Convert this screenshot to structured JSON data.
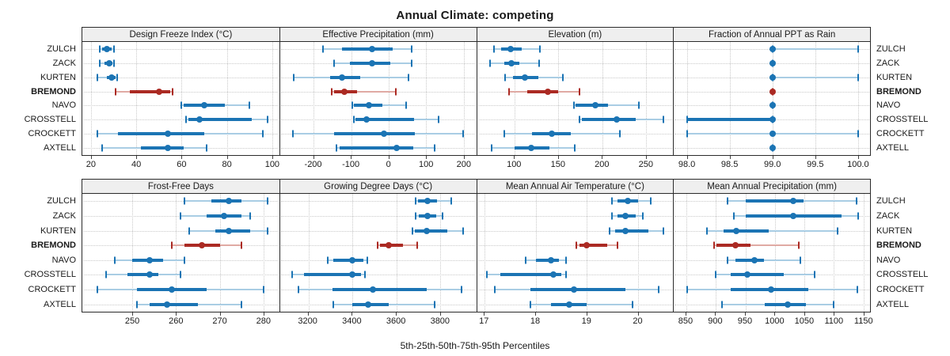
{
  "title": "Annual Climate: competing",
  "caption": "5th-25th-50th-75th-95th Percentiles",
  "colors": {
    "blue": "#1b74b4",
    "blue_light": "#a9cde4",
    "red": "#ab2a23",
    "red_light": "#e0aaa4",
    "grid": "#c9c9c9",
    "header_bg": "#efefef",
    "border": "#2b2b2b"
  },
  "chart_data": {
    "type": "scatter",
    "subtype": "percentile-interval-dotplot-lattice",
    "percentiles": [
      5,
      25,
      50,
      75,
      95
    ],
    "grid": "dotted",
    "legend": "none",
    "categories": [
      "ZULCH",
      "ZACK",
      "KURTEN",
      "BREMOND",
      "NAVO",
      "CROSSTELL",
      "CROCKETT",
      "AXTELL"
    ],
    "highlight_category": "BREMOND",
    "panels": [
      {
        "key": "design_freeze_index",
        "title": "Design Freeze Index (°C)",
        "row": 0,
        "xlim": [
          16.2,
          103.1
        ],
        "tick_labels": [
          "20",
          "40",
          "60",
          "80",
          "100"
        ],
        "tick_values": [
          20,
          40,
          60,
          80,
          100
        ],
        "series": [
          {
            "site": "ZULCH",
            "values": [
              24,
              25,
              27,
              29,
              30
            ]
          },
          {
            "site": "ZACK",
            "values": [
              24,
              26,
              28,
              29.5,
              30
            ]
          },
          {
            "site": "KURTEN",
            "values": [
              23,
              27,
              29,
              31,
              31.5
            ]
          },
          {
            "site": "BREMOND",
            "values": [
              31,
              37,
              50,
              55,
              56
            ]
          },
          {
            "site": "NAVO",
            "values": [
              60,
              61,
              70,
              79,
              90
            ]
          },
          {
            "site": "CROSSTELL",
            "values": [
              62,
              63,
              68,
              91,
              98
            ]
          },
          {
            "site": "CROCKETT",
            "values": [
              23,
              32,
              54,
              70,
              96
            ]
          },
          {
            "site": "AXTELL",
            "values": [
              25,
              42,
              54,
              61,
              71
            ]
          }
        ]
      },
      {
        "key": "effective_precipitation",
        "title": "Effective Precipitation (mm)",
        "row": 0,
        "xlim": [
          -290,
          233
        ],
        "tick_labels": [
          "-200",
          "-100",
          "0",
          "100",
          "200"
        ],
        "tick_values": [
          -200,
          -100,
          0,
          100,
          200
        ],
        "series": [
          {
            "site": "ZULCH",
            "values": [
              -175,
              -125,
              -44,
              10,
              62
            ]
          },
          {
            "site": "ZACK",
            "values": [
              -145,
              -104,
              -44,
              5,
              62
            ]
          },
          {
            "site": "KURTEN",
            "values": [
              -254,
              -156,
              -125,
              -77,
              52
            ]
          },
          {
            "site": "BREMOND",
            "values": [
              -152,
              -146,
              -119,
              -85,
              19
            ]
          },
          {
            "site": "NAVO",
            "values": [
              -98,
              -94,
              -54,
              -17,
              46
            ]
          },
          {
            "site": "CROSSTELL",
            "values": [
              -94,
              -89,
              -60,
              67,
              133
            ]
          },
          {
            "site": "CROCKETT",
            "values": [
              -256,
              -146,
              -12,
              69,
              198
            ]
          },
          {
            "site": "AXTELL",
            "values": [
              -139,
              -131,
              21,
              65,
              123
            ]
          }
        ]
      },
      {
        "key": "elevation",
        "title": "Elevation (m)",
        "row": 0,
        "xlim": [
          57,
          281
        ],
        "tick_labels": [
          "100",
          "150",
          "200",
          "250"
        ],
        "tick_values": [
          100,
          150,
          200,
          250
        ],
        "series": [
          {
            "site": "ZULCH",
            "values": [
              76,
              85,
              95,
              108,
              129
            ]
          },
          {
            "site": "ZACK",
            "values": [
              72,
              88,
              96,
              105,
              128
            ]
          },
          {
            "site": "KURTEN",
            "values": [
              89,
              98,
              112,
              127,
              155
            ]
          },
          {
            "site": "BREMOND",
            "values": [
              94,
              114,
              138,
              150,
              174
            ]
          },
          {
            "site": "NAVO",
            "values": [
              168,
              170,
              192,
              207,
              242
            ]
          },
          {
            "site": "CROSSTELL",
            "values": [
              174,
              177,
              217,
              238,
              270
            ]
          },
          {
            "site": "CROCKETT",
            "values": [
              88,
              120,
              142,
              164,
              220
            ]
          },
          {
            "site": "AXTELL",
            "values": [
              74,
              100,
              119,
              140,
              169
            ]
          }
        ]
      },
      {
        "key": "fraction_ppt_rain",
        "title": "Fraction of Annual PPT as Rain",
        "row": 0,
        "xlim": [
          97.84,
          100.14
        ],
        "tick_labels": [
          "98.0",
          "98.5",
          "99.0",
          "99.5",
          "100.0"
        ],
        "tick_values": [
          98,
          98.5,
          99,
          99.5,
          100
        ],
        "series": [
          {
            "site": "ZULCH",
            "values": [
              99,
              99,
              99,
              99,
              100
            ]
          },
          {
            "site": "ZACK",
            "values": [
              99,
              99,
              99,
              99,
              99
            ]
          },
          {
            "site": "KURTEN",
            "values": [
              99,
              99,
              99,
              99,
              100
            ]
          },
          {
            "site": "BREMOND",
            "values": [
              99,
              99,
              99,
              99,
              99
            ]
          },
          {
            "site": "NAVO",
            "values": [
              99,
              99,
              99,
              99,
              99
            ]
          },
          {
            "site": "CROSSTELL",
            "values": [
              98,
              98,
              99,
              99,
              99
            ]
          },
          {
            "site": "CROCKETT",
            "values": [
              98,
              99,
              99,
              99,
              100
            ]
          },
          {
            "site": "AXTELL",
            "values": [
              99,
              99,
              99,
              99,
              99
            ]
          }
        ]
      },
      {
        "key": "frost_free_days",
        "title": "Frost-Free Days",
        "row": 1,
        "xlim": [
          238.6,
          283.6
        ],
        "tick_labels": [
          "250",
          "260",
          "270",
          "280"
        ],
        "tick_values": [
          250,
          260,
          270,
          280
        ],
        "series": [
          {
            "site": "ZULCH",
            "values": [
              262,
              268,
              272,
              275,
              281
            ]
          },
          {
            "site": "ZACK",
            "values": [
              261,
              267,
              271,
              275,
              277
            ]
          },
          {
            "site": "KURTEN",
            "values": [
              263,
              269,
              272,
              277,
              281
            ]
          },
          {
            "site": "BREMOND",
            "values": [
              259,
              262,
              266,
              270,
              275
            ]
          },
          {
            "site": "NAVO",
            "values": [
              246,
              250,
              254,
              257,
              262
            ]
          },
          {
            "site": "CROSSTELL",
            "values": [
              244,
              249,
              254,
              256,
              261
            ]
          },
          {
            "site": "CROCKETT",
            "values": [
              242,
              251,
              259,
              267,
              280
            ]
          },
          {
            "site": "AXTELL",
            "values": [
              251,
              254,
              258,
              265,
              275
            ]
          }
        ]
      },
      {
        "key": "growing_degree_days",
        "title": "Growing Degree Days (°C)",
        "row": 1,
        "xlim": [
          3071,
          3964
        ],
        "tick_labels": [
          "3200",
          "3400",
          "3600",
          "3800"
        ],
        "tick_values": [
          3200,
          3400,
          3600,
          3800
        ],
        "series": [
          {
            "site": "ZULCH",
            "values": [
              3690,
              3700,
              3743,
              3786,
              3850
            ]
          },
          {
            "site": "ZACK",
            "values": [
              3690,
              3703,
              3743,
              3782,
              3810
            ]
          },
          {
            "site": "KURTEN",
            "values": [
              3675,
              3686,
              3739,
              3832,
              3903
            ]
          },
          {
            "site": "BREMOND",
            "values": [
              3514,
              3525,
              3564,
              3632,
              3696
            ]
          },
          {
            "site": "NAVO",
            "values": [
              3289,
              3314,
              3400,
              3450,
              3468
            ]
          },
          {
            "site": "CROSSTELL",
            "values": [
              3125,
              3180,
              3400,
              3439,
              3457
            ]
          },
          {
            "site": "CROCKETT",
            "values": [
              3154,
              3311,
              3493,
              3739,
              3896
            ]
          },
          {
            "site": "AXTELL",
            "values": [
              3314,
              3400,
              3471,
              3564,
              3775
            ]
          }
        ]
      },
      {
        "key": "mean_annual_air_temperature",
        "title": "Mean Annual Air Temperature (°C)",
        "row": 1,
        "xlim": [
          16.85,
          20.69
        ],
        "tick_labels": [
          "17",
          "18",
          "19",
          "20"
        ],
        "tick_values": [
          17,
          18,
          19,
          20
        ],
        "series": [
          {
            "site": "ZULCH",
            "values": [
              19.5,
              19.6,
              19.8,
              20.0,
              20.25
            ]
          },
          {
            "site": "ZACK",
            "values": [
              19.5,
              19.6,
              19.75,
              19.95,
              20.1
            ]
          },
          {
            "site": "KURTEN",
            "values": [
              19.45,
              19.55,
              19.75,
              20.2,
              20.5
            ]
          },
          {
            "site": "BREMOND",
            "values": [
              18.8,
              18.85,
              19.0,
              19.4,
              19.6
            ]
          },
          {
            "site": "NAVO",
            "values": [
              17.8,
              18.0,
              18.3,
              18.45,
              18.6
            ]
          },
          {
            "site": "CROSSTELL",
            "values": [
              17.05,
              17.3,
              18.35,
              18.5,
              18.6
            ]
          },
          {
            "site": "CROCKETT",
            "values": [
              17.2,
              17.9,
              18.75,
              19.75,
              20.4
            ]
          },
          {
            "site": "AXTELL",
            "values": [
              17.9,
              18.3,
              18.65,
              19.0,
              19.9
            ]
          }
        ]
      },
      {
        "key": "mean_annual_precipitation",
        "title": "Mean Annual Precipitation (mm)",
        "row": 1,
        "xlim": [
          829,
          1161
        ],
        "tick_labels": [
          "850",
          "900",
          "950",
          "1000",
          "1050",
          "1100",
          "1150"
        ],
        "tick_values": [
          850,
          900,
          950,
          1000,
          1050,
          1100,
          1150
        ],
        "series": [
          {
            "site": "ZULCH",
            "values": [
              920,
              950,
              1031,
              1049,
              1138
            ]
          },
          {
            "site": "ZACK",
            "values": [
              930,
              950,
              1031,
              1113,
              1141
            ]
          },
          {
            "site": "KURTEN",
            "values": [
              885,
              913,
              935,
              989,
              1106
            ]
          },
          {
            "site": "BREMOND",
            "values": [
              897,
              901,
              933,
              958,
              1040
            ]
          },
          {
            "site": "NAVO",
            "values": [
              920,
              933,
              966,
              982,
              1043
            ]
          },
          {
            "site": "CROSSTELL",
            "values": [
              900,
              925,
              953,
              1015,
              1067
            ]
          },
          {
            "site": "CROCKETT",
            "values": [
              851,
              925,
              994,
              1057,
              1139
            ]
          },
          {
            "site": "AXTELL",
            "values": [
              910,
              983,
              1022,
              1053,
              1099
            ]
          }
        ]
      }
    ]
  }
}
